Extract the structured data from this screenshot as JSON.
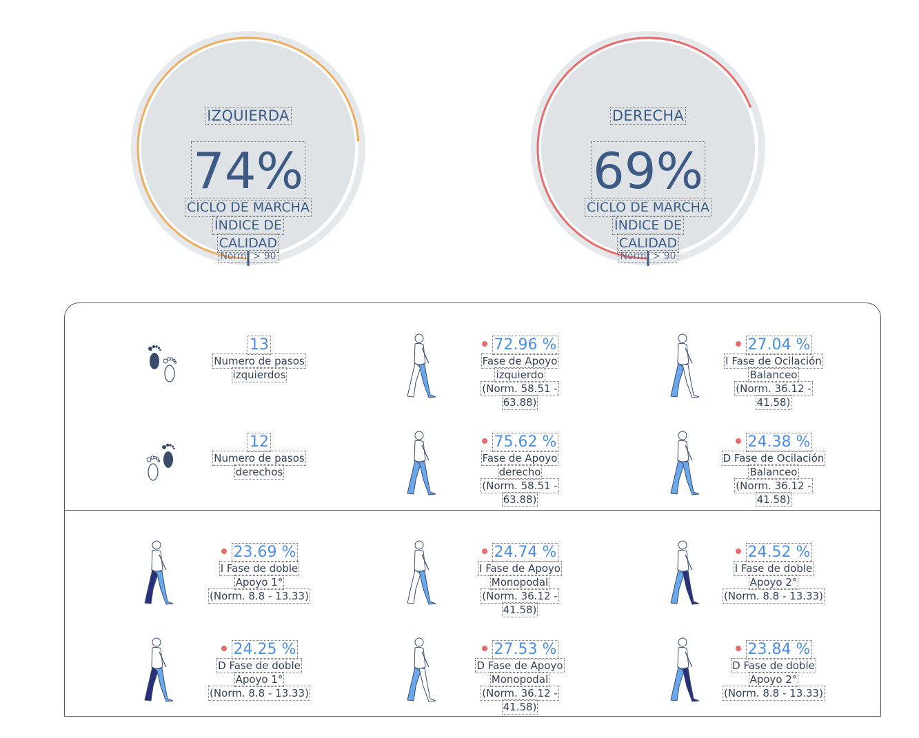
{
  "gauges": {
    "left": {
      "title": "IZQUIERDA",
      "percent": "74%",
      "subtitle": "CICLO DE MARCHA",
      "subtitle2": "ÍNDICE DE",
      "subtitle3": "CALIDAD",
      "norm": "Norm. > 90",
      "value": 74,
      "color": "#f0ad5e"
    },
    "right": {
      "title": "DERECHA",
      "percent": "69%",
      "subtitle": "CICLO DE MARCHA",
      "subtitle2": "ÍNDICE DE",
      "subtitle3": "CALIDAD",
      "norm": "Norm. > 90",
      "value": 69,
      "color": "#ea6b6b"
    }
  },
  "metrics": {
    "steps_left": {
      "value": "13",
      "label1": "Numero de pasos",
      "label2": "izquierdos"
    },
    "steps_right": {
      "value": "12",
      "label1": "Numero de pasos",
      "label2": "derechos"
    },
    "stance_left": {
      "value": "72.96 %",
      "label1": "Fase de Apoyo",
      "label2": "izquierdo",
      "label3": "(Norm. 58.51 -",
      "label4": "63.88)"
    },
    "stance_right": {
      "value": "75.62 %",
      "label1": "Fase de  Apoyo",
      "label2": "derecho",
      "label3": "(Norm. 58.51 -",
      "label4": "63.88)"
    },
    "swing_left": {
      "value": "27.04 %",
      "label1": "I Fase de Ocilación",
      "label2": "Balanceo",
      "label3": "(Norm. 36.12 -",
      "label4": "41.58)"
    },
    "swing_right": {
      "value": "24.38 %",
      "label1": "D Fase de Ocilación",
      "label2": "Balanceo",
      "label3": "(Norm. 36.12 -",
      "label4": "41.58)"
    },
    "double1_left": {
      "value": "23.69 %",
      "label1": "I Fase de doble",
      "label2": "Apoyo  1°",
      "label3": "(Norm. 8.8 - 13.33)"
    },
    "mono_left": {
      "value": "24.74 %",
      "label1": "I Fase de Apoyo",
      "label2": "Monopodal",
      "label3": "(Norm. 36.12 -",
      "label4": "41.58)"
    },
    "double2_left": {
      "value": "24.52 %",
      "label1": "I Fase de doble",
      "label2": "Apoyo 2°",
      "label3": "(Norm. 8.8 - 13.33)"
    },
    "double1_right": {
      "value": "24.25 %",
      "label1": "D Fase de doble",
      "label2": "Apoyo 1°",
      "label3": "(Norm. 8.8 - 13.33)"
    },
    "mono_right": {
      "value": "27.53 %",
      "label1": "D Fase de Apoyo",
      "label2": "Monopodal",
      "label3": "(Norm. 36.12 -",
      "label4": "41.58)"
    },
    "double2_right": {
      "value": "23.84 %",
      "label1": "D Fase de doble",
      "label2": "Apoyo  2°",
      "label3": "(Norm. 8.8 - 13.33)"
    }
  },
  "icons": {
    "footprints_left": "footprints-left-icon",
    "footprints_right": "footprints-right-icon",
    "walker": "walking-figure-icon"
  },
  "colors": {
    "accent": "#4a8ee6",
    "dot": "#e86a6a",
    "leg_light": "#6aa8ee",
    "leg_dark": "#2a2f7a",
    "text": "#33425a"
  }
}
